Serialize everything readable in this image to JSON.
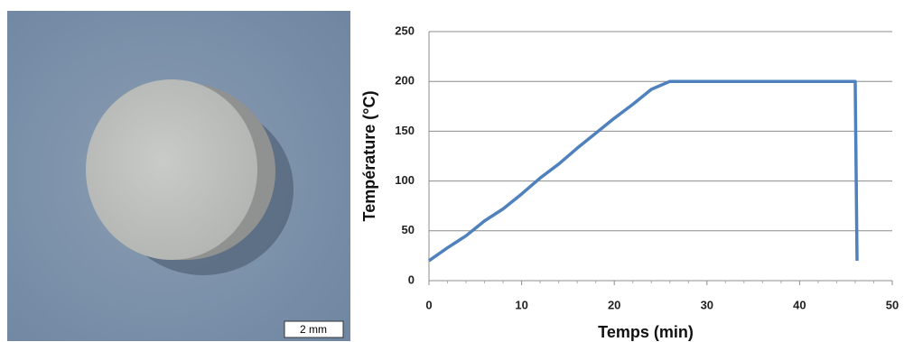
{
  "photo": {
    "scale_bar": "2 mm"
  },
  "chart_data": {
    "type": "line",
    "x_label": "Temps (min)",
    "y_label": "Température (°C)",
    "x": [
      0,
      2,
      4,
      6,
      8,
      10,
      12,
      14,
      16,
      18,
      20,
      22,
      24,
      26,
      46,
      46.2
    ],
    "values": [
      20,
      33,
      45,
      60,
      72,
      87,
      103,
      117,
      133,
      148,
      163,
      177,
      192,
      200,
      200,
      20
    ],
    "color": "#4f81bd",
    "xlim": [
      0,
      50
    ],
    "xticks": [
      0,
      10,
      20,
      30,
      40,
      50
    ],
    "ylim": [
      0,
      250
    ],
    "yticks": [
      0,
      50,
      100,
      150,
      200,
      250
    ],
    "grid": true
  }
}
